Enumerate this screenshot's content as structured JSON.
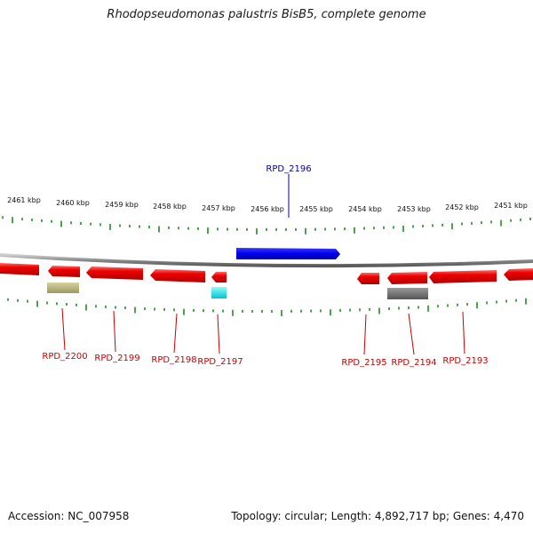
{
  "title": "Rhodopseudomonas palustris BisB5, complete genome",
  "accession": "Accession: NC_007958",
  "topology": "Topology: circular; Length: 4,892,717 bp; Genes: 4,470",
  "kbp_ticks": [
    "2461 kbp",
    "2460 kbp",
    "2459 kbp",
    "2458 kbp",
    "2457 kbp",
    "2456 kbp",
    "2455 kbp",
    "2454 kbp",
    "2453 kbp",
    "2452 kbp",
    "2451 kbp"
  ],
  "colors": {
    "forward_gene": "#0000ee",
    "reverse_gene": "#ee0000",
    "tick": "#228b22",
    "backbone": "#888888",
    "label_forward": "#0000aa",
    "label_reverse": "#cc0000",
    "olive_feature": "#b5b07a",
    "cyan_feature": "#00e5ee",
    "gray_feature": "#707070"
  },
  "genes": [
    {
      "id": "RPD_2196",
      "strand": "forward"
    },
    {
      "id": "RPD_2200",
      "strand": "reverse"
    },
    {
      "id": "RPD_2199",
      "strand": "reverse"
    },
    {
      "id": "RPD_2198",
      "strand": "reverse"
    },
    {
      "id": "RPD_2197",
      "strand": "reverse"
    },
    {
      "id": "RPD_2195",
      "strand": "reverse"
    },
    {
      "id": "RPD_2194",
      "strand": "reverse"
    },
    {
      "id": "RPD_2193",
      "strand": "reverse"
    }
  ]
}
